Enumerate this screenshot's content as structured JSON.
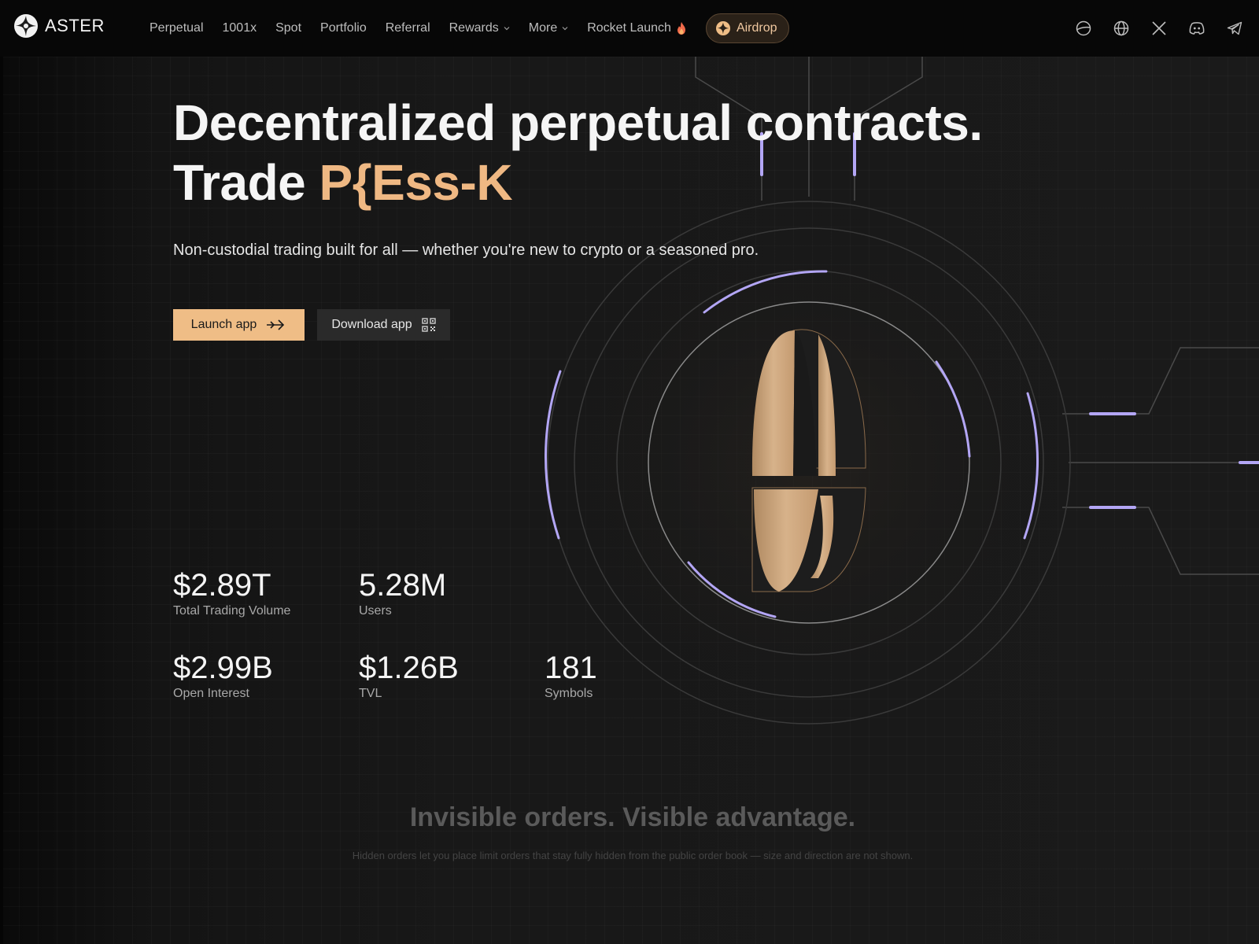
{
  "brand": {
    "name": "ASTER",
    "accent": "#efbd86",
    "highlight": "#b3a6f5"
  },
  "nav": {
    "links": [
      {
        "label": "Perpetual"
      },
      {
        "label": "1001x"
      },
      {
        "label": "Spot"
      },
      {
        "label": "Portfolio"
      },
      {
        "label": "Referral"
      },
      {
        "label": "Rewards",
        "has_dropdown": true
      },
      {
        "label": "More",
        "has_dropdown": true
      },
      {
        "label": "Rocket Launch",
        "icon": "fire-icon"
      }
    ],
    "airdrop_label": "Airdrop",
    "icons": [
      "planet-icon",
      "globe-icon",
      "x-icon",
      "discord-icon",
      "telegram-icon"
    ]
  },
  "hero": {
    "title_line1": "Decentralized perpetual contracts.",
    "title_line2_prefix": "Trade ",
    "title_line2_accent": "P{Ess-K",
    "subtitle": "Non-custodial trading built for all — whether you're new to crypto or a seasoned pro.",
    "launch_label": "Launch app",
    "download_label": "Download app"
  },
  "stats": [
    {
      "value": "$2.89T",
      "label": "Total Trading Volume"
    },
    {
      "value": "5.28M",
      "label": "Users"
    },
    {
      "value": "$2.99B",
      "label": "Open Interest"
    },
    {
      "value": "$1.26B",
      "label": "TVL"
    },
    {
      "value": "181",
      "label": "Symbols"
    }
  ],
  "section": {
    "title": "Invisible orders. Visible advantage.",
    "subtitle": "Hidden orders let you place limit orders that stay fully hidden from the public order book — size and direction are not shown."
  }
}
